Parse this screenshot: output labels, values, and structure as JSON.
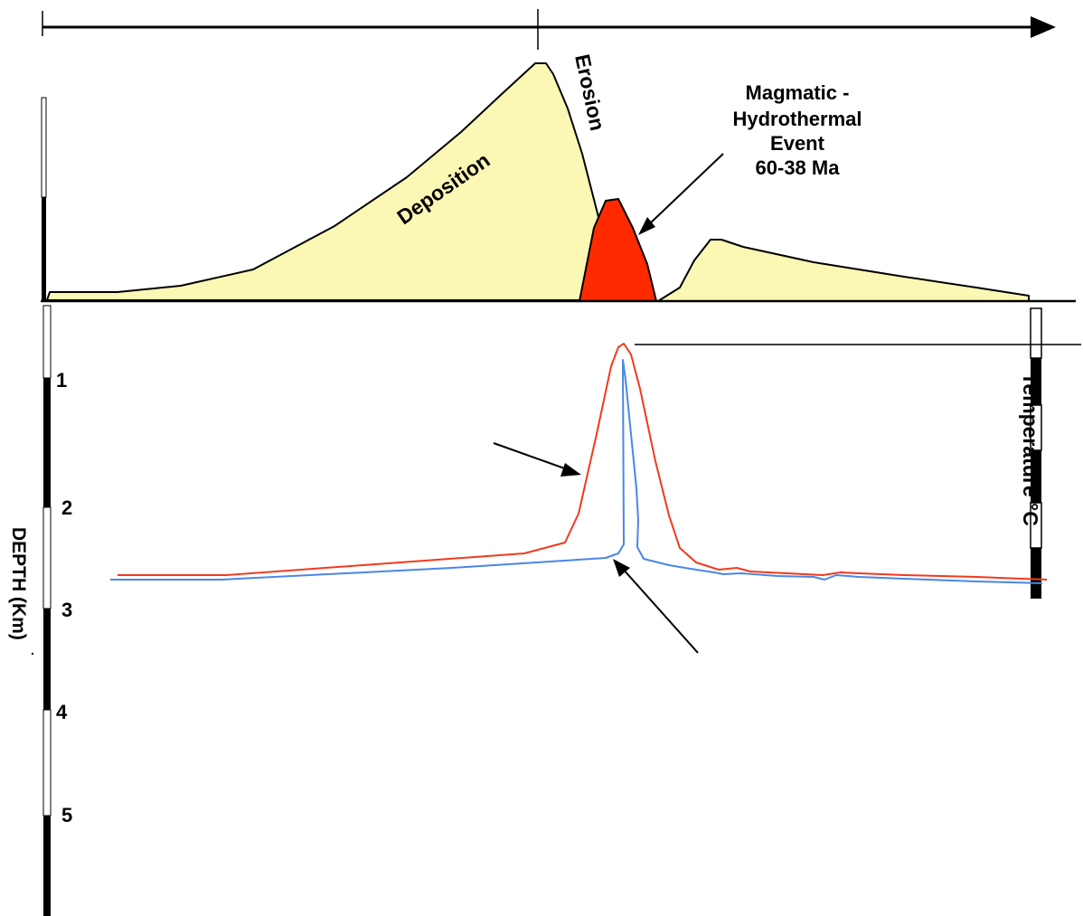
{
  "labels": {
    "deposition": "Deposition",
    "erosion": "Erosion",
    "event_line1": "Magmatic -",
    "event_line2": "Hydrothermal",
    "event_line3": "Event",
    "event_line4": "60-38 Ma",
    "depth_axis": "DEPTH (Km)",
    "temperature_axis": "Temperature °C",
    "small_mark": "."
  },
  "depth_ticks": [
    "1",
    "2",
    "3",
    "4",
    "5"
  ],
  "colors": {
    "sediment_fill": "#fbf7b4",
    "intrusion_fill": "#ff2a00",
    "red_curve": "#f23a1e",
    "blue_curve": "#4a86e8",
    "outline": "#000000"
  }
}
